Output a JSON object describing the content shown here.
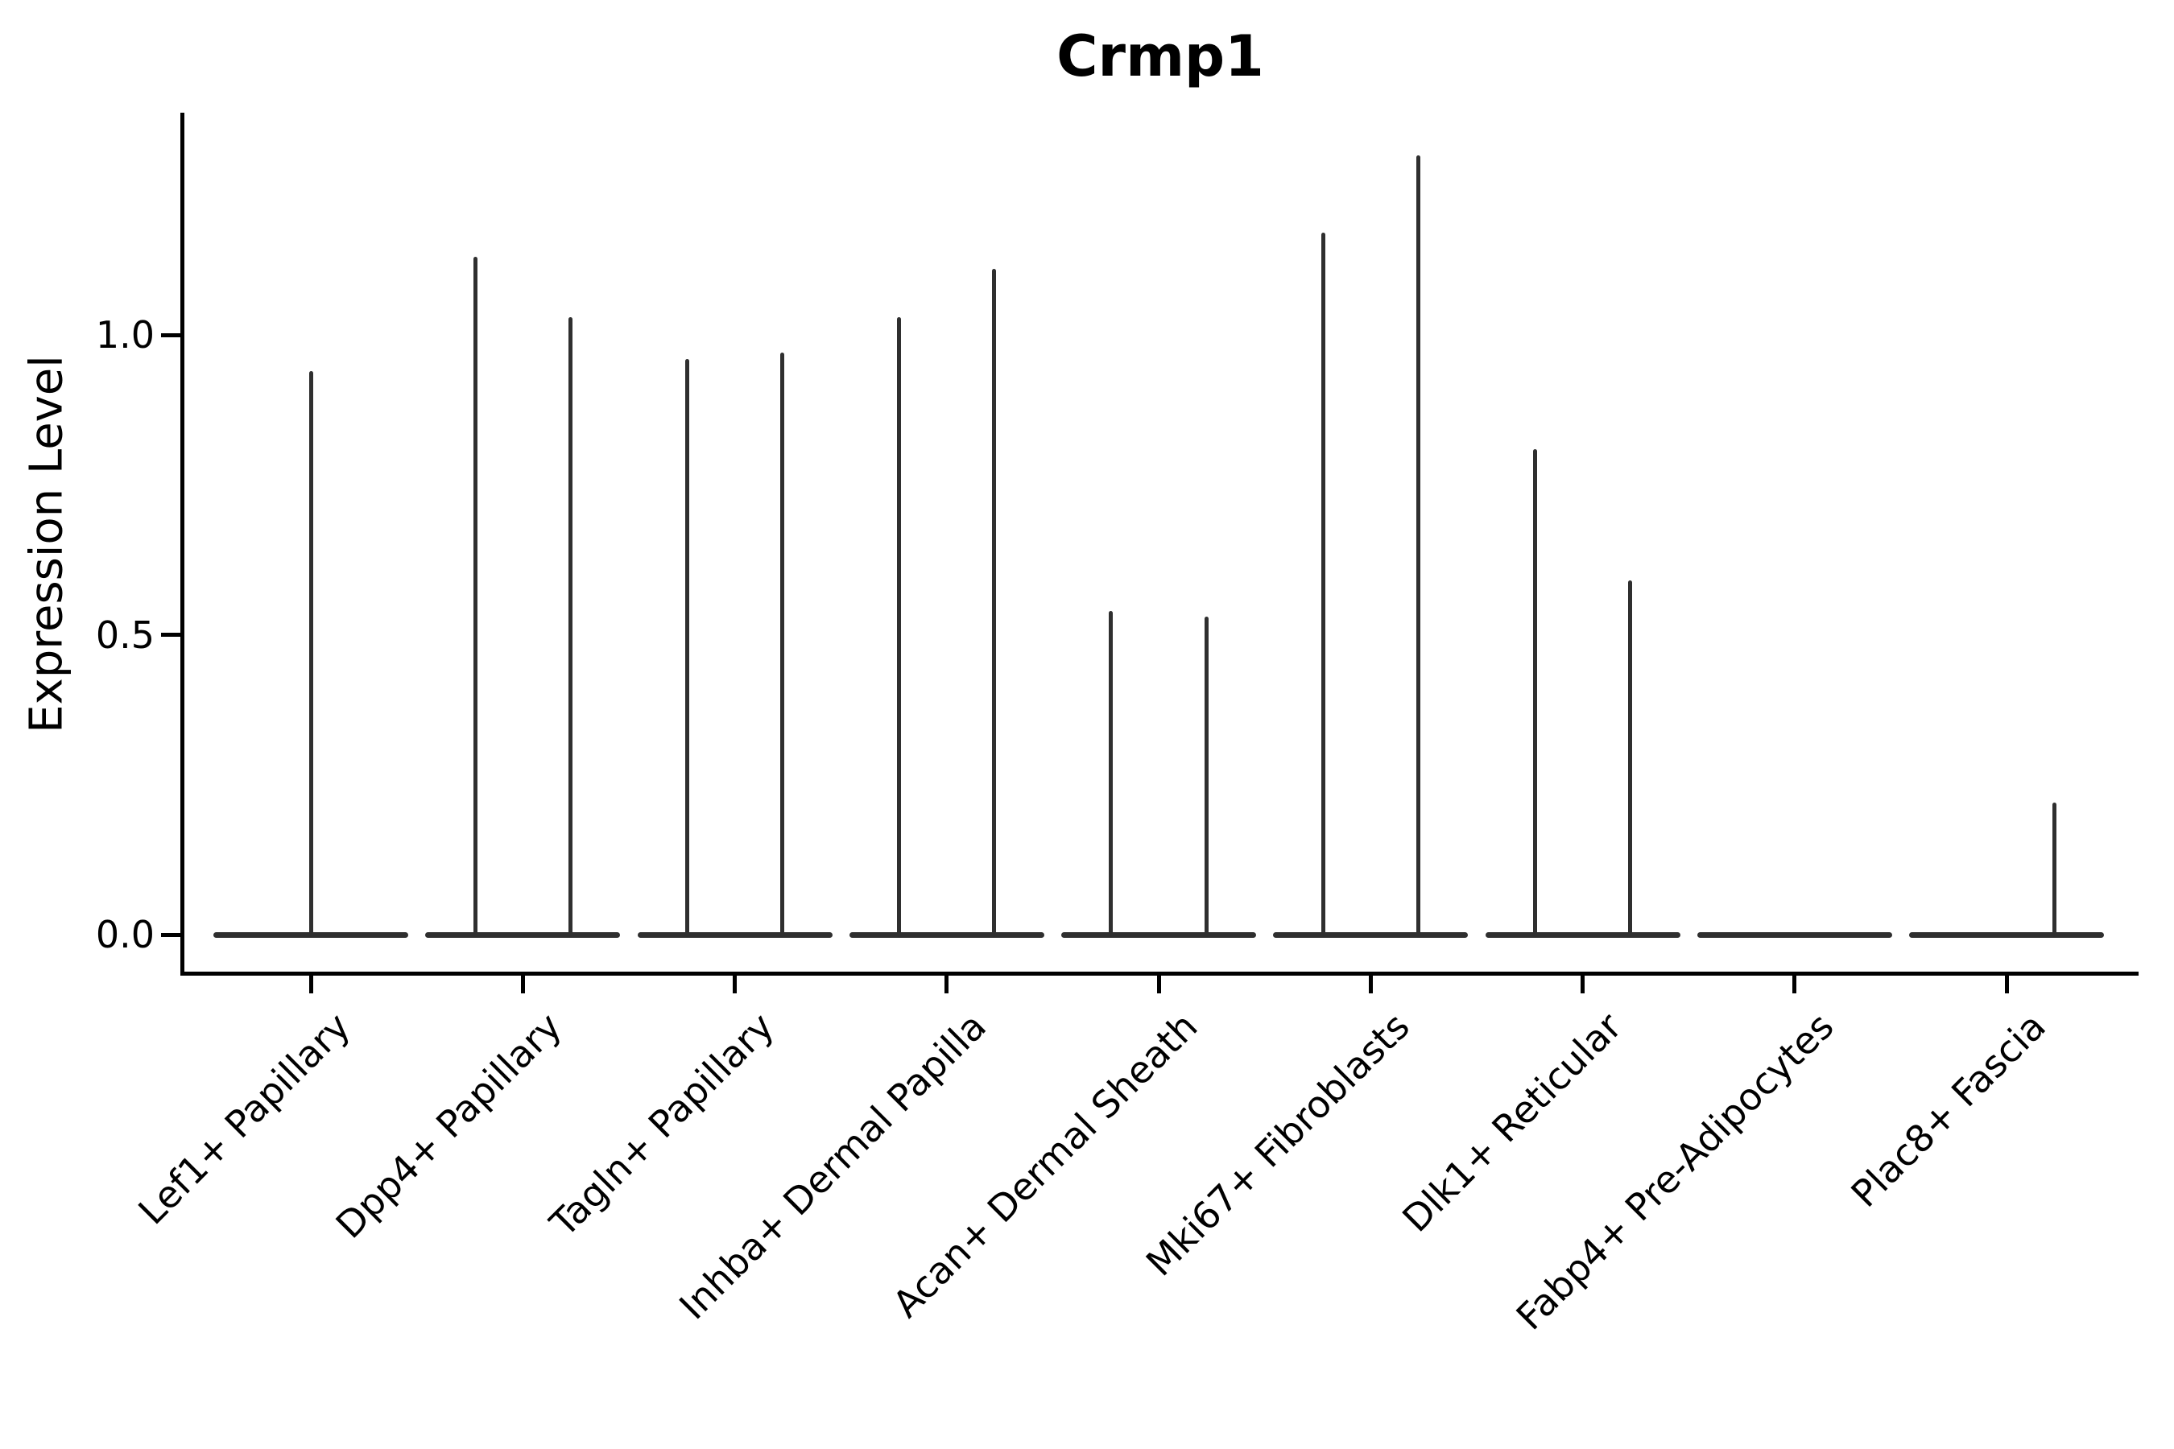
{
  "title": "Crmp1",
  "axes": {
    "ylabel": "Expression Level",
    "yticks": [
      {
        "label": "0.0",
        "value": 0.0
      },
      {
        "label": "0.5",
        "value": 0.5
      },
      {
        "label": "1.0",
        "value": 1.0
      }
    ]
  },
  "colors": {
    "violin": "#2f2f2f",
    "axis": "#000000",
    "text": "#000000",
    "background": "#ffffff"
  },
  "chart_data": {
    "type": "violin",
    "title": "Crmp1",
    "xlabel": "",
    "ylabel": "Expression Level",
    "ylim": [
      -0.067,
      1.37
    ],
    "yticks": [
      0.0,
      0.5,
      1.0
    ],
    "grid": false,
    "legend": "none",
    "baseline_value": 0.0,
    "categories": [
      "Lef1+ Papillary",
      "Dpp4+ Papillary",
      "Tagln+ Papillary",
      "Inhba+ Dermal Papilla",
      "Acan+ Dermal Sheath",
      "Mki67+ Fibroblasts",
      "Dlk1+ Reticular",
      "Fabp4+ Pre-Adipocytes",
      "Plac8+ Fascia"
    ],
    "violins": [
      {
        "label": "Lef1+ Papillary",
        "spikes": [
          {
            "pos": 0.0,
            "max": 0.94
          }
        ]
      },
      {
        "label": "Dpp4+ Papillary",
        "spikes": [
          {
            "pos": -0.225,
            "max": 1.13
          },
          {
            "pos": 0.225,
            "max": 1.03
          }
        ]
      },
      {
        "label": "Tagln+ Papillary",
        "spikes": [
          {
            "pos": -0.225,
            "max": 0.96
          },
          {
            "pos": 0.225,
            "max": 0.97
          }
        ]
      },
      {
        "label": "Inhba+ Dermal Papilla",
        "spikes": [
          {
            "pos": -0.225,
            "max": 1.03
          },
          {
            "pos": 0.225,
            "max": 1.11
          }
        ]
      },
      {
        "label": "Acan+ Dermal Sheath",
        "spikes": [
          {
            "pos": -0.225,
            "max": 0.54
          },
          {
            "pos": 0.225,
            "max": 0.53
          }
        ]
      },
      {
        "label": "Mki67+ Fibroblasts",
        "spikes": [
          {
            "pos": -0.225,
            "max": 1.17
          },
          {
            "pos": 0.225,
            "max": 1.3
          }
        ]
      },
      {
        "label": "Dlk1+ Reticular",
        "spikes": [
          {
            "pos": -0.225,
            "max": 0.81
          },
          {
            "pos": 0.225,
            "max": 0.59
          }
        ]
      },
      {
        "label": "Fabp4+ Pre-Adipocytes",
        "spikes": []
      },
      {
        "label": "Plac8+ Fascia",
        "spikes": [
          {
            "pos": 0.225,
            "max": 0.22
          }
        ]
      }
    ]
  }
}
